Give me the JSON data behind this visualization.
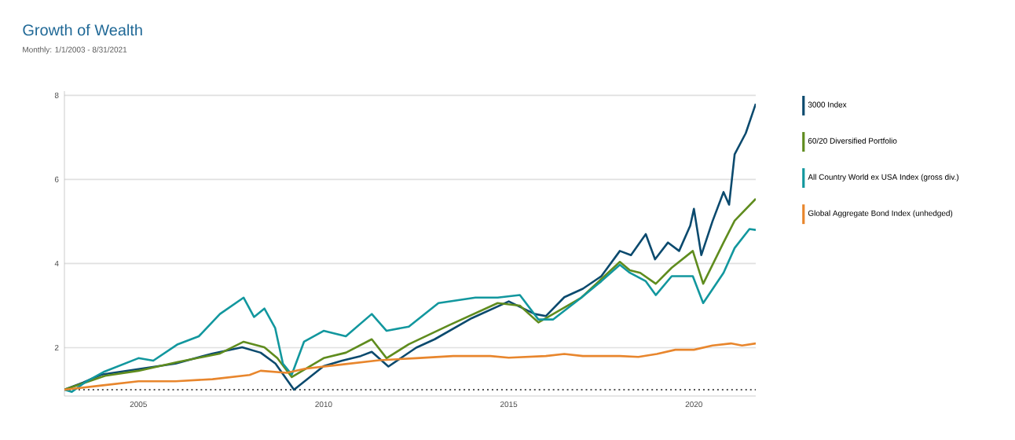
{
  "chart_data": {
    "type": "line",
    "title": "Growth of Wealth",
    "subtitle": "Monthly: 1/1/2003 - 8/31/2021",
    "xlim": [
      2003,
      2021.67
    ],
    "xticks": [
      2005,
      2010,
      2015,
      2020
    ],
    "ylim": [
      0.85,
      8.1
    ],
    "yticks": [
      2,
      4,
      6,
      8
    ],
    "grid": "y",
    "legend": "right",
    "line_style": "solid",
    "marker": "none",
    "ref_lines": [
      {
        "axis": "y",
        "value": 1,
        "color": "#555555",
        "line_style": "dotted"
      }
    ],
    "series": [
      {
        "name": "3000 Index",
        "color": "#0b4a6e",
        "x": [
          2003.0,
          2003.5,
          2004.0,
          2005.0,
          2006.0,
          2007.0,
          2007.8,
          2008.3,
          2008.7,
          2009.2,
          2010.0,
          2010.5,
          2011.0,
          2011.3,
          2011.75,
          2012.5,
          2013.0,
          2014.0,
          2015.0,
          2015.7,
          2016.0,
          2016.5,
          2017.0,
          2017.5,
          2018.0,
          2018.3,
          2018.7,
          2018.95,
          2019.3,
          2019.6,
          2019.9,
          2020.0,
          2020.2,
          2020.5,
          2020.8,
          2020.95,
          2021.1,
          2021.4,
          2021.67
        ],
        "values": [
          1.0,
          1.17,
          1.36,
          1.49,
          1.62,
          1.86,
          2.01,
          1.88,
          1.62,
          1.0,
          1.56,
          1.69,
          1.8,
          1.9,
          1.55,
          2.0,
          2.2,
          2.7,
          3.1,
          2.8,
          2.75,
          3.2,
          3.4,
          3.7,
          4.3,
          4.2,
          4.7,
          4.1,
          4.5,
          4.3,
          4.9,
          5.3,
          4.2,
          5.0,
          5.7,
          5.4,
          6.6,
          7.1,
          7.8
        ]
      },
      {
        "name": "60/20 Diversified Portfolio",
        "color": "#5f8c1e",
        "x": [
          2003.0,
          2004.1,
          2005.0,
          2006.06,
          2007.2,
          2007.84,
          2008.4,
          2008.75,
          2009.14,
          2010.0,
          2010.6,
          2011.3,
          2011.7,
          2012.3,
          2013.4,
          2014.7,
          2015.3,
          2015.8,
          2016.2,
          2016.96,
          2018.0,
          2018.27,
          2018.55,
          2018.97,
          2019.4,
          2019.97,
          2020.25,
          2020.8,
          2021.1,
          2021.67
        ],
        "values": [
          1.0,
          1.33,
          1.45,
          1.66,
          1.86,
          2.14,
          2.01,
          1.75,
          1.3,
          1.75,
          1.88,
          2.2,
          1.75,
          2.08,
          2.54,
          3.06,
          3.0,
          2.6,
          2.8,
          3.19,
          4.04,
          3.84,
          3.78,
          3.52,
          3.9,
          4.3,
          3.52,
          4.5,
          5.02,
          5.54
        ]
      },
      {
        "name": "All Country World ex USA Index (gross div.)",
        "color": "#12979e",
        "x": [
          2003.0,
          2003.2,
          2003.6,
          2004.08,
          2005.0,
          2005.4,
          2006.06,
          2006.63,
          2007.2,
          2007.84,
          2008.12,
          2008.4,
          2008.69,
          2008.9,
          2009.14,
          2009.47,
          2010.0,
          2010.6,
          2011.3,
          2011.7,
          2012.3,
          2013.1,
          2014.1,
          2014.7,
          2015.3,
          2015.8,
          2016.2,
          2016.96,
          2017.5,
          2018.0,
          2018.27,
          2018.7,
          2018.97,
          2019.4,
          2019.97,
          2020.25,
          2020.8,
          2021.1,
          2021.5,
          2021.67
        ],
        "values": [
          1.0,
          0.95,
          1.2,
          1.43,
          1.75,
          1.69,
          2.08,
          2.27,
          2.8,
          3.19,
          2.73,
          2.93,
          2.47,
          1.62,
          1.36,
          2.14,
          2.4,
          2.27,
          2.8,
          2.4,
          2.5,
          3.06,
          3.19,
          3.19,
          3.25,
          2.67,
          2.67,
          3.19,
          3.58,
          3.97,
          3.78,
          3.58,
          3.25,
          3.7,
          3.7,
          3.06,
          3.78,
          4.37,
          4.82,
          4.8
        ]
      },
      {
        "name": "Global Aggregate Bond Index (unhedged)",
        "color": "#e8862d",
        "x": [
          2003.0,
          2004.0,
          2005.0,
          2006.0,
          2007.0,
          2008.0,
          2008.3,
          2009.0,
          2009.5,
          2010.5,
          2011.5,
          2012.5,
          2013.5,
          2014.5,
          2015.0,
          2016.0,
          2016.5,
          2017.0,
          2018.0,
          2018.5,
          2019.0,
          2019.5,
          2020.0,
          2020.5,
          2021.0,
          2021.3,
          2021.67
        ],
        "values": [
          1.0,
          1.1,
          1.2,
          1.2,
          1.25,
          1.35,
          1.45,
          1.4,
          1.5,
          1.6,
          1.7,
          1.75,
          1.8,
          1.8,
          1.76,
          1.8,
          1.85,
          1.8,
          1.8,
          1.78,
          1.85,
          1.95,
          1.95,
          2.05,
          2.1,
          2.05,
          2.1
        ]
      }
    ]
  }
}
